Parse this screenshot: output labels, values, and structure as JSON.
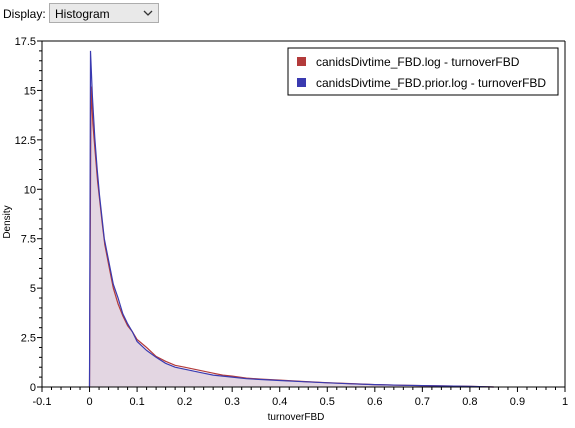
{
  "toolbar": {
    "display_label": "Display:",
    "display_value": "Histogram",
    "display_options": [
      "Histogram"
    ]
  },
  "chart_data": {
    "type": "line",
    "xlabel": "turnoverFBD",
    "ylabel": "Density",
    "xlim": [
      -0.1,
      1.0
    ],
    "ylim": [
      0,
      17.5
    ],
    "xticks": [
      "-0.1",
      "0",
      "0.1",
      "0.2",
      "0.3",
      "0.4",
      "0.5",
      "0.6",
      "0.7",
      "0.8",
      "0.9",
      "1"
    ],
    "yticks": [
      "0",
      "2.5",
      "5",
      "7.5",
      "10",
      "12.5",
      "15",
      "17.5"
    ],
    "legend_position": "top-right",
    "grid": false,
    "series": [
      {
        "name": "canidsDivtime_FBD.log - turnoverFBD",
        "color": "#b33b3b",
        "fill": false,
        "x": [
          0.0,
          0.003,
          0.007,
          0.012,
          0.017,
          0.022,
          0.027,
          0.032,
          0.04,
          0.05,
          0.06,
          0.07,
          0.08,
          0.09,
          0.1,
          0.12,
          0.14,
          0.16,
          0.18,
          0.2,
          0.22,
          0.24,
          0.26,
          0.28,
          0.3,
          0.33,
          0.36,
          0.4,
          0.45,
          0.5,
          0.55,
          0.6,
          0.65,
          0.7,
          0.75,
          0.8,
          0.85
        ],
        "y": [
          0,
          15.2,
          13.3,
          11.8,
          10.4,
          9.3,
          8.2,
          7.2,
          6.2,
          5.0,
          4.2,
          3.6,
          3.1,
          2.8,
          2.4,
          2.0,
          1.55,
          1.3,
          1.1,
          1.0,
          0.9,
          0.8,
          0.7,
          0.6,
          0.55,
          0.45,
          0.4,
          0.35,
          0.28,
          0.22,
          0.17,
          0.12,
          0.09,
          0.07,
          0.05,
          0.03,
          0.0
        ]
      },
      {
        "name": "canidsDivtime_FBD.prior.log - turnoverFBD",
        "color": "#3a3ab0",
        "fill": true,
        "x": [
          0.0,
          0.002,
          0.006,
          0.011,
          0.016,
          0.021,
          0.026,
          0.031,
          0.04,
          0.05,
          0.06,
          0.07,
          0.08,
          0.09,
          0.1,
          0.12,
          0.14,
          0.16,
          0.18,
          0.2,
          0.22,
          0.24,
          0.26,
          0.28,
          0.3,
          0.33,
          0.36,
          0.4,
          0.45,
          0.5,
          0.55,
          0.6,
          0.65,
          0.7,
          0.75,
          0.8,
          0.85
        ],
        "y": [
          0,
          17.0,
          14.7,
          12.6,
          11.0,
          9.7,
          8.6,
          7.5,
          6.4,
          5.2,
          4.5,
          3.7,
          3.2,
          2.8,
          2.3,
          1.85,
          1.5,
          1.2,
          1.0,
          0.9,
          0.8,
          0.7,
          0.6,
          0.55,
          0.5,
          0.42,
          0.38,
          0.33,
          0.27,
          0.21,
          0.16,
          0.12,
          0.09,
          0.07,
          0.05,
          0.03,
          0.0
        ]
      }
    ]
  }
}
